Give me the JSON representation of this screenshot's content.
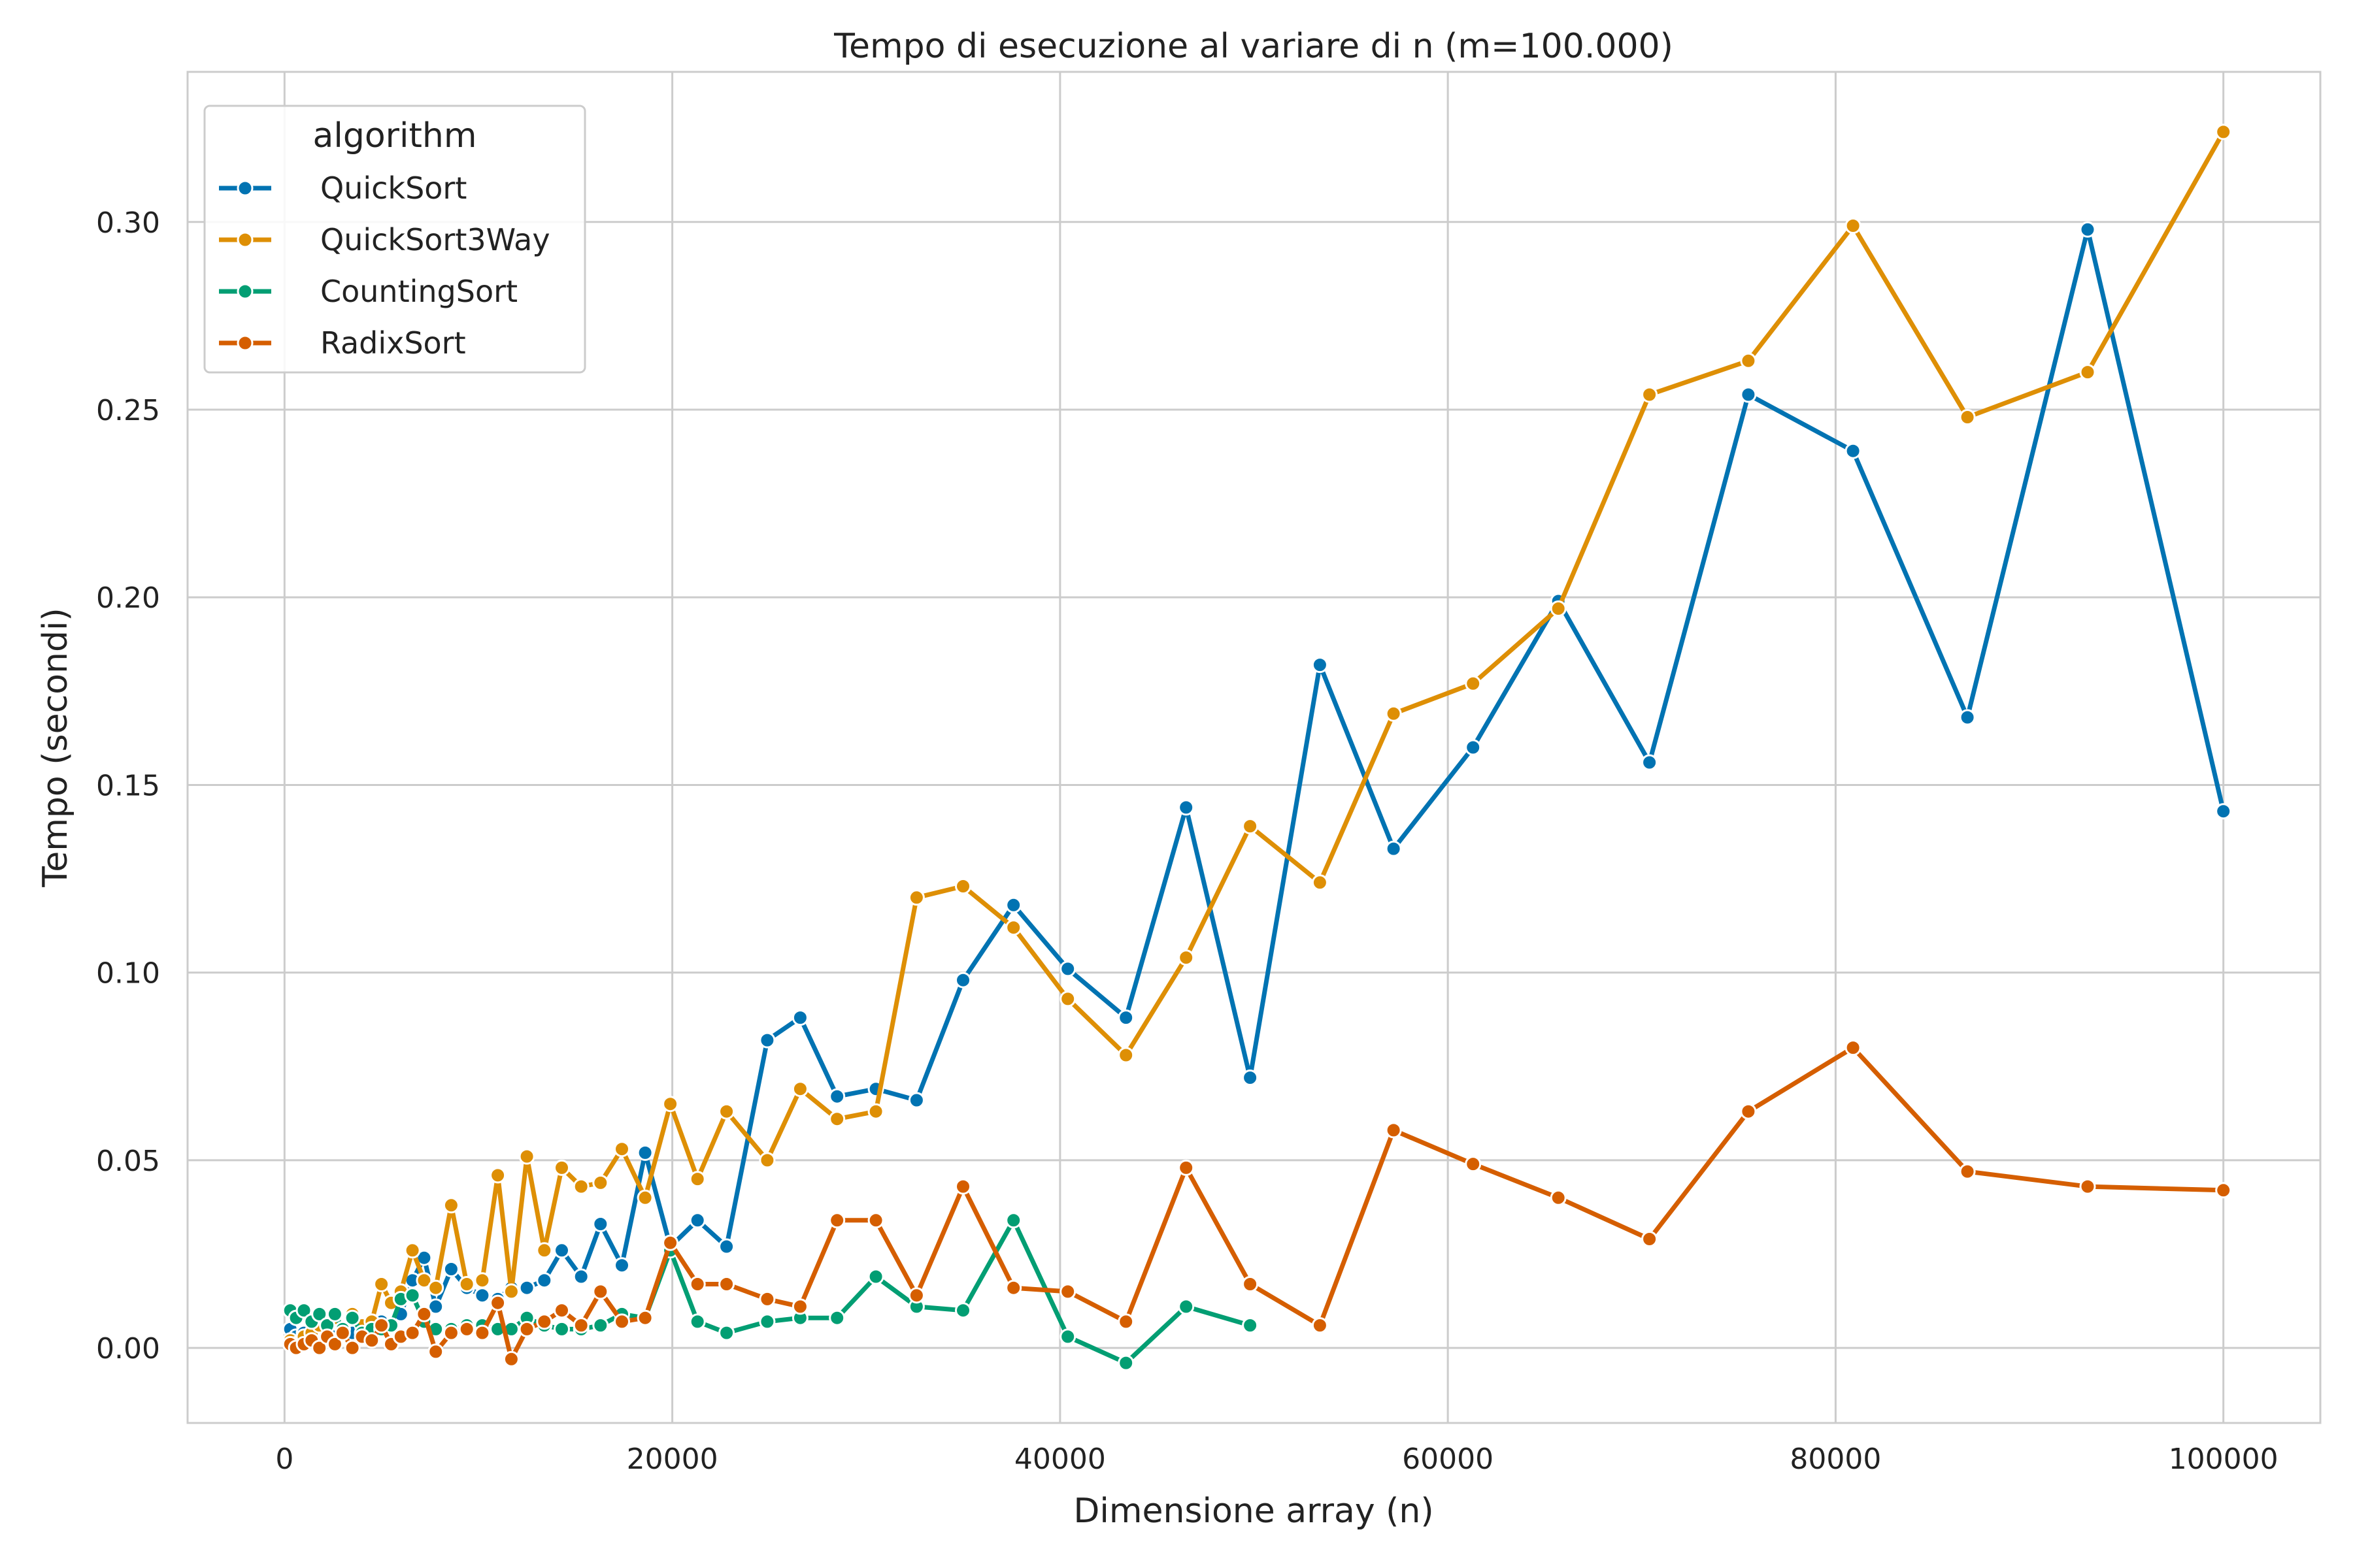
{
  "chart_data": {
    "type": "line",
    "title": "Tempo di esecuzione al variare di n (m=100.000)",
    "xlabel": "Dimensione array (n)",
    "ylabel": "Tempo (secondi)",
    "xlim": [
      -5000,
      105000
    ],
    "ylim": [
      -0.02,
      0.34
    ],
    "xticks": [
      0,
      20000,
      40000,
      60000,
      80000,
      100000
    ],
    "xtick_labels": [
      "0",
      "20000",
      "40000",
      "60000",
      "80000",
      "100000"
    ],
    "yticks": [
      0.0,
      0.05,
      0.1,
      0.15,
      0.2,
      0.25,
      0.3
    ],
    "ytick_labels": [
      "0.00",
      "0.05",
      "0.10",
      "0.15",
      "0.20",
      "0.25",
      "0.30"
    ],
    "grid": true,
    "legend": {
      "title": "algorithm",
      "position": "top-left"
    },
    "series": [
      {
        "name": "QuickSort",
        "color": "#0173b2",
        "x": [
          300,
          600,
          1000,
          1400,
          1800,
          2200,
          2600,
          3000,
          3500,
          4000,
          4500,
          5000,
          5500,
          6000,
          6600,
          7200,
          7800,
          8600,
          9400,
          10200,
          11000,
          11700,
          12500,
          13400,
          14300,
          15300,
          16300,
          17400,
          18600,
          19900,
          21300,
          22800,
          24900,
          26600,
          28500,
          30500,
          32600,
          35000,
          37600,
          40400,
          43400,
          46500,
          49800,
          53400,
          57200,
          61300,
          65700,
          70400,
          75500,
          80900,
          86800,
          93000,
          100000
        ],
        "y": [
          0.005,
          0.003,
          0.004,
          0.003,
          0.004,
          0.005,
          0.003,
          0.005,
          0.004,
          0.006,
          0.004,
          0.007,
          0.006,
          0.009,
          0.018,
          0.024,
          0.011,
          0.021,
          0.016,
          0.014,
          0.013,
          0.016,
          0.016,
          0.018,
          0.026,
          0.019,
          0.033,
          0.022,
          0.052,
          0.027,
          0.034,
          0.027,
          0.082,
          0.088,
          0.067,
          0.069,
          0.066,
          0.098,
          0.118,
          0.101,
          0.088,
          0.144,
          0.072,
          0.182,
          0.133,
          0.16,
          0.199,
          0.156,
          0.254,
          0.239,
          0.168,
          0.298,
          0.143
        ]
      },
      {
        "name": "QuickSort3Way",
        "color": "#de8f05",
        "x": [
          300,
          600,
          1000,
          1400,
          1800,
          2200,
          2600,
          3000,
          3500,
          4000,
          4500,
          5000,
          5500,
          6000,
          6600,
          7200,
          7800,
          8600,
          9400,
          10200,
          11000,
          11700,
          12500,
          13400,
          14300,
          15300,
          16300,
          17400,
          18600,
          19900,
          21300,
          22800,
          24900,
          26600,
          28500,
          30500,
          32600,
          35000,
          37600,
          40400,
          43400,
          46500,
          49800,
          53400,
          57200,
          61300,
          65700,
          70400,
          75500,
          80900,
          86800,
          93000,
          100000
        ],
        "y": [
          0.002,
          0.001,
          0.003,
          0.004,
          0.006,
          0.003,
          0.008,
          0.005,
          0.009,
          0.006,
          0.007,
          0.017,
          0.012,
          0.015,
          0.026,
          0.018,
          0.016,
          0.038,
          0.017,
          0.018,
          0.046,
          0.015,
          0.051,
          0.026,
          0.048,
          0.043,
          0.044,
          0.053,
          0.04,
          0.065,
          0.045,
          0.063,
          0.05,
          0.069,
          0.061,
          0.063,
          0.12,
          0.123,
          0.112,
          0.093,
          0.078,
          0.104,
          0.139,
          0.124,
          0.169,
          0.177,
          0.197,
          0.254,
          0.263,
          0.299,
          0.248,
          0.26,
          0.324
        ]
      },
      {
        "name": "CountingSort",
        "color": "#029e73",
        "x": [
          300,
          600,
          1000,
          1400,
          1800,
          2200,
          2600,
          3000,
          3500,
          4000,
          4500,
          5000,
          5500,
          6000,
          6600,
          7200,
          7800,
          8600,
          9400,
          10200,
          11000,
          11700,
          12500,
          13400,
          14300,
          15300,
          16300,
          17400,
          18600,
          19900,
          21300,
          22800,
          24900,
          26600,
          28500,
          30500,
          32600,
          35000,
          37600,
          40400,
          43400,
          46500,
          49800
        ],
        "y": [
          0.01,
          0.008,
          0.01,
          0.007,
          0.009,
          0.006,
          0.009,
          0.005,
          0.008,
          0.004,
          0.005,
          0.005,
          0.006,
          0.013,
          0.014,
          0.007,
          0.005,
          0.005,
          0.006,
          0.006,
          0.005,
          0.005,
          0.008,
          0.006,
          0.005,
          0.005,
          0.006,
          0.009,
          0.008,
          0.026,
          0.007,
          0.004,
          0.007,
          0.008,
          0.008,
          0.019,
          0.011,
          0.01,
          0.034,
          0.003,
          -0.004,
          0.011,
          0.006
        ]
      },
      {
        "name": "RadixSort",
        "color": "#d55e00",
        "x": [
          300,
          600,
          1000,
          1400,
          1800,
          2200,
          2600,
          3000,
          3500,
          4000,
          4500,
          5000,
          5500,
          6000,
          6600,
          7200,
          7800,
          8600,
          9400,
          10200,
          11000,
          11700,
          12500,
          13400,
          14300,
          15300,
          16300,
          17400,
          18600,
          19900,
          21300,
          22800,
          24900,
          26600,
          28500,
          30500,
          32600,
          35000,
          37600,
          40400,
          43400,
          46500,
          49800,
          53400,
          57200,
          61300,
          65700,
          70400,
          75500,
          80900,
          86800,
          93000,
          100000
        ],
        "y": [
          0.001,
          0.0,
          0.001,
          0.002,
          0.0,
          0.003,
          0.001,
          0.004,
          0.0,
          0.003,
          0.002,
          0.006,
          0.001,
          0.003,
          0.004,
          0.009,
          -0.001,
          0.004,
          0.005,
          0.004,
          0.012,
          -0.003,
          0.005,
          0.007,
          0.01,
          0.006,
          0.015,
          0.007,
          0.008,
          0.028,
          0.017,
          0.017,
          0.013,
          0.011,
          0.034,
          0.034,
          0.014,
          0.043,
          0.016,
          0.015,
          0.007,
          0.048,
          0.017,
          0.006,
          0.058,
          0.049,
          0.04,
          0.029,
          0.063,
          0.08,
          0.047,
          0.043,
          0.042
        ]
      }
    ]
  }
}
